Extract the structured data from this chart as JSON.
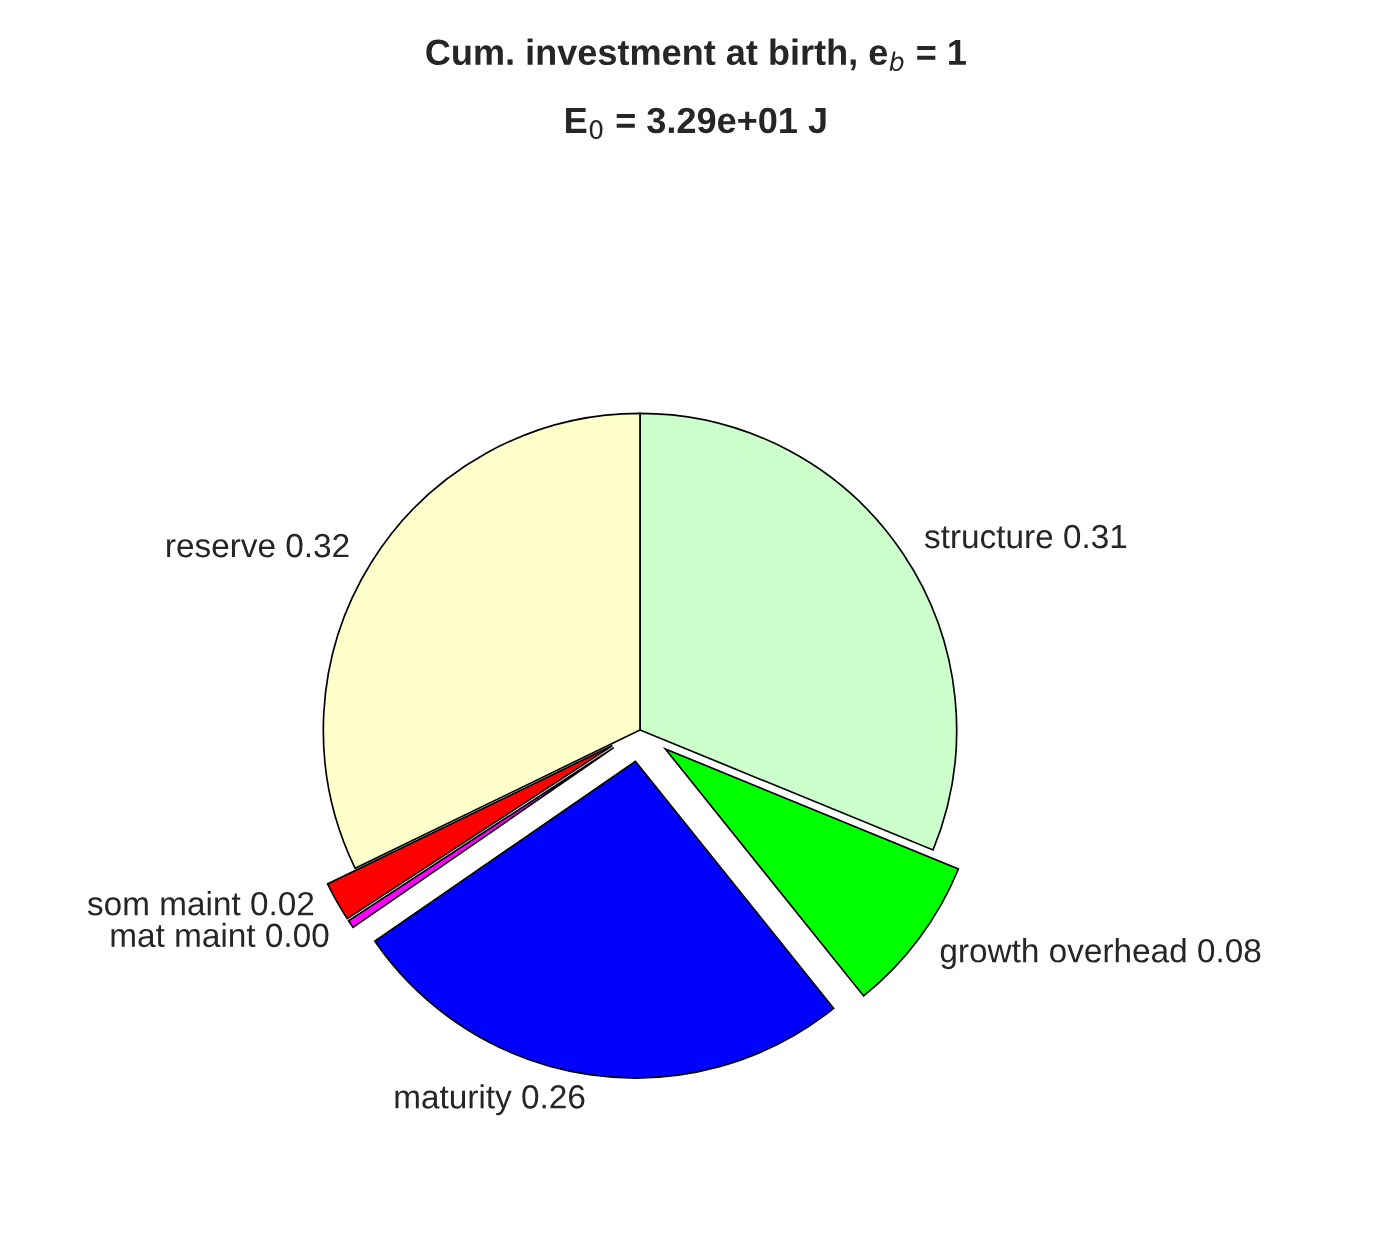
{
  "chart_data": {
    "type": "pie",
    "title": "Cum. investment at birth, e$_{b}$ = 1",
    "subtitle": "E$_{0}$ = 3.29e+01 J",
    "categories": [
      "structure",
      "growth overhead",
      "maturity",
      "mat maint",
      "som maint",
      "reserve"
    ],
    "values": [
      0.31,
      0.08,
      0.26,
      0.004,
      0.02,
      0.32
    ],
    "value_labels": [
      "0.31",
      "0.08",
      "0.26",
      "0.00",
      "0.02",
      "0.32"
    ],
    "colors": [
      "#ccffcc",
      "#00ff00",
      "#0000ff",
      "#ff00ff",
      "#ff0000",
      "#ffffcc"
    ],
    "legend": false
  }
}
